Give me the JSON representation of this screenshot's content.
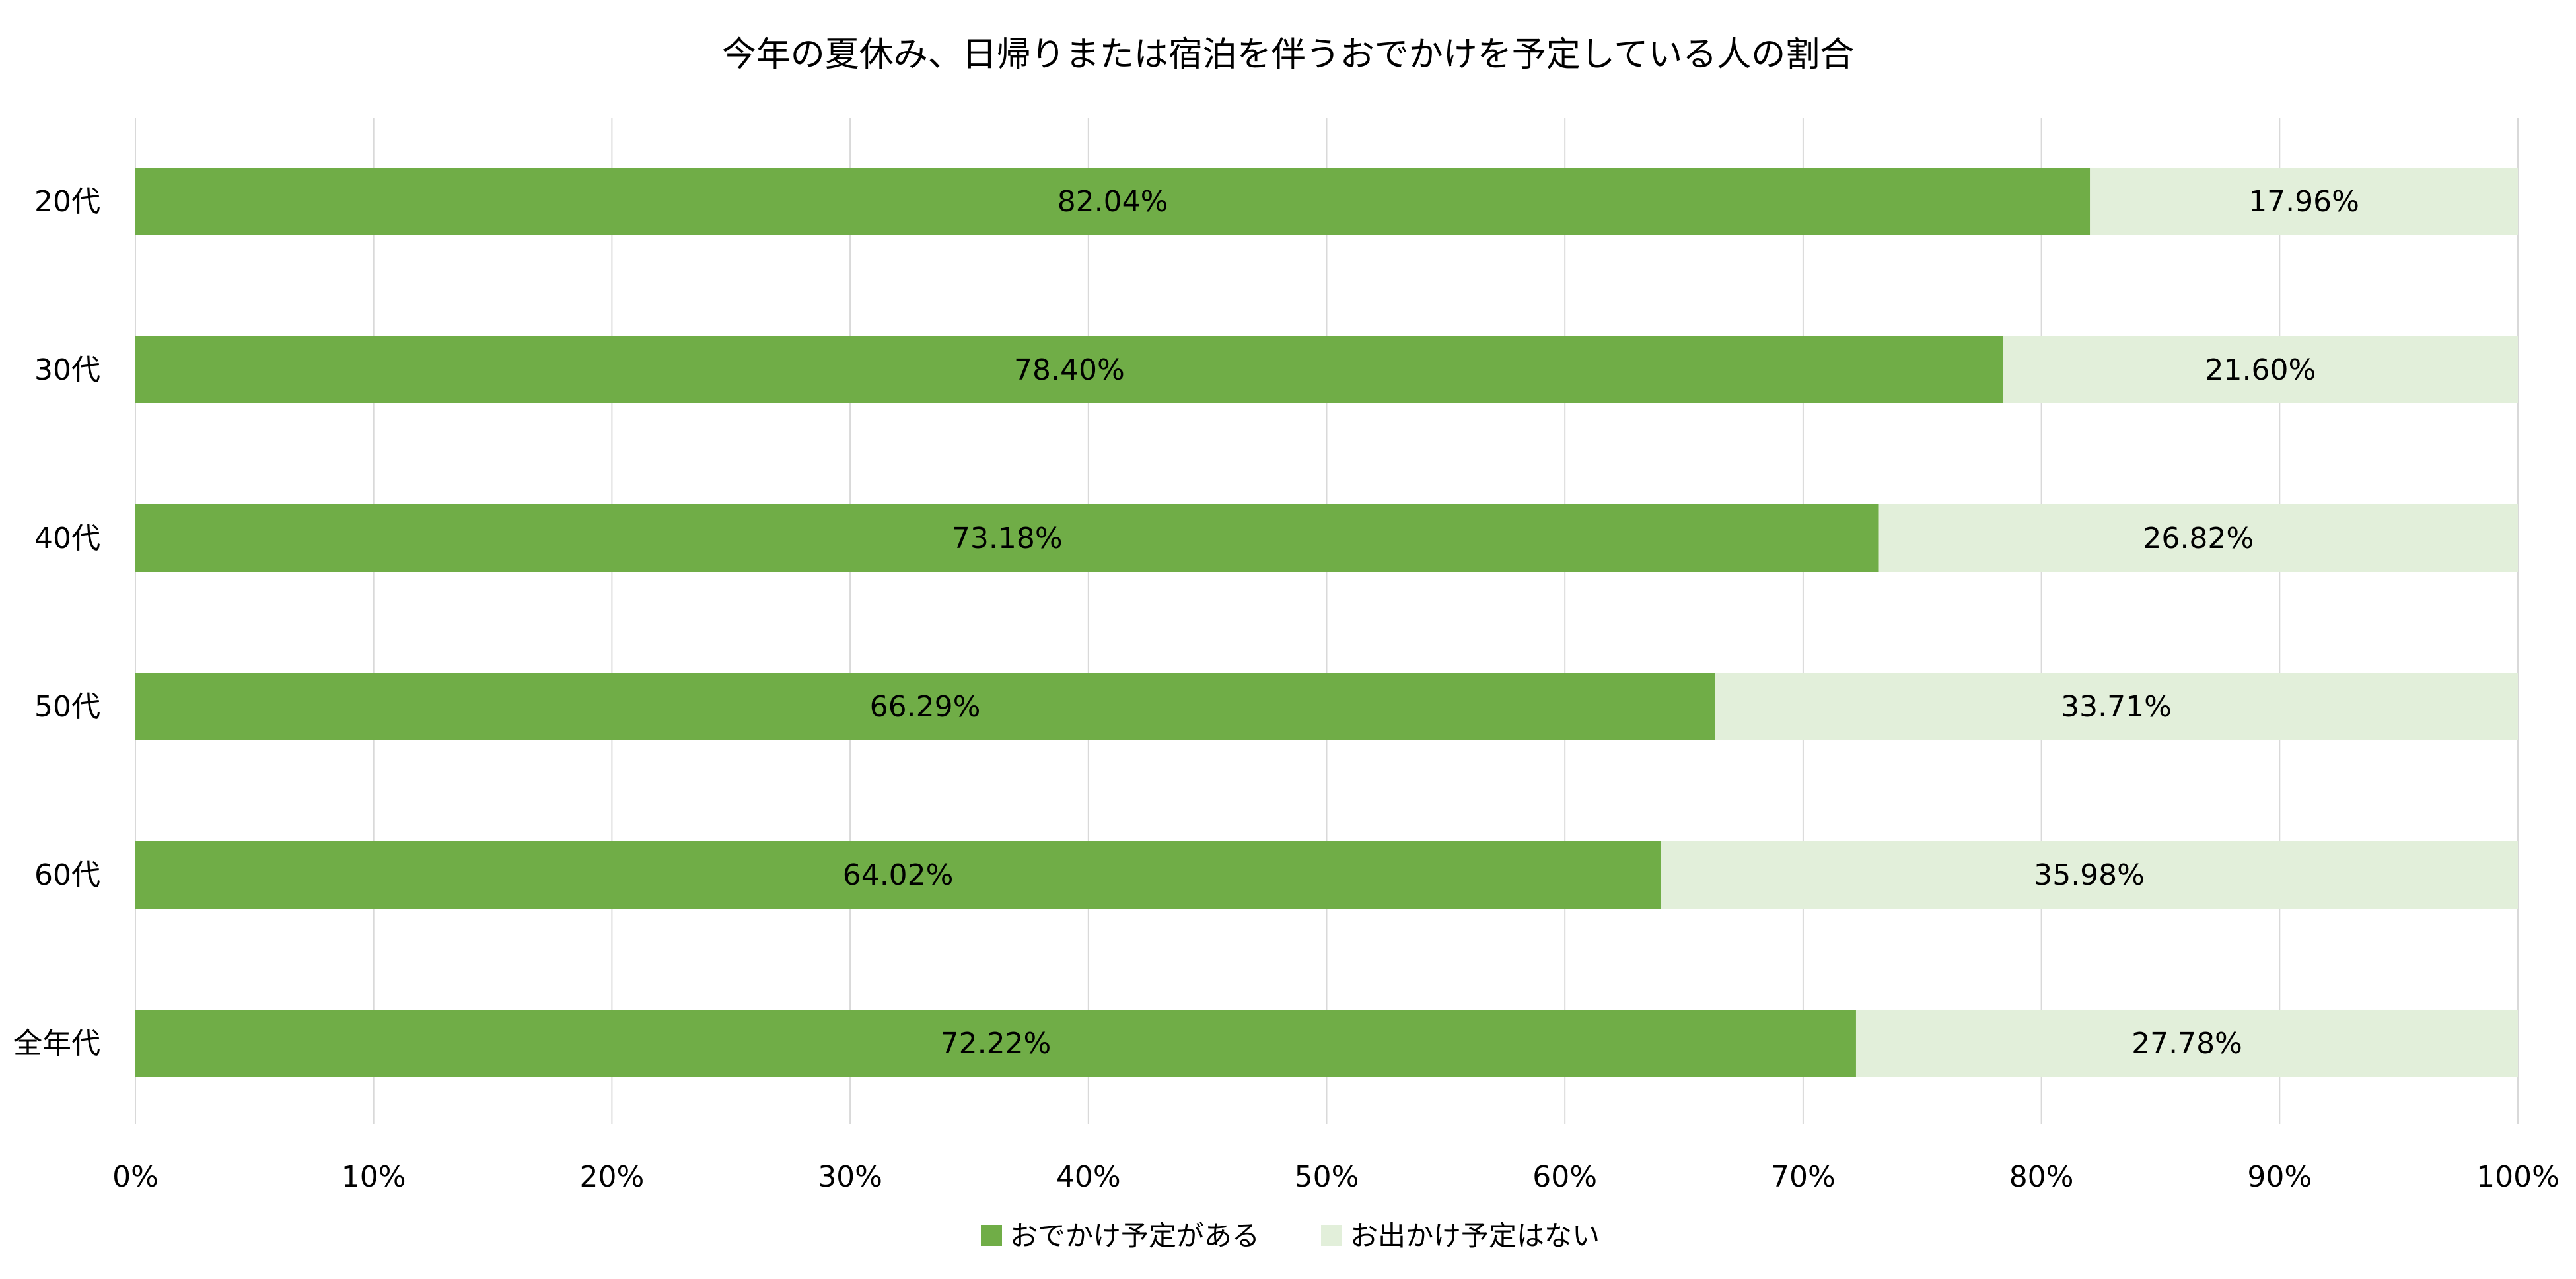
{
  "chart_data": {
    "type": "bar",
    "orientation": "horizontal",
    "stacked": "percent",
    "title": "今年の夏休み、日帰りまたは宿泊を伴うおでかけを予定している人の割合",
    "xlabel": "",
    "ylabel": "",
    "categories": [
      "20代",
      "30代",
      "40代",
      "50代",
      "60代",
      "全年代"
    ],
    "series": [
      {
        "name": "おでかけ予定がある",
        "color": "#70ad47",
        "values": [
          82.04,
          78.4,
          73.18,
          66.29,
          64.02,
          72.22
        ],
        "labels": [
          "82.04%",
          "78.40%",
          "73.18%",
          "66.29%",
          "64.02%",
          "72.22%"
        ]
      },
      {
        "name": "お出かけ予定はない",
        "color": "#e2efda",
        "values": [
          17.96,
          21.6,
          26.82,
          33.71,
          35.98,
          27.78
        ],
        "labels": [
          "17.96%",
          "21.60%",
          "26.82%",
          "33.71%",
          "35.98%",
          "27.78%"
        ]
      }
    ],
    "xlim": [
      0,
      100
    ],
    "x_ticks": [
      "0%",
      "10%",
      "20%",
      "30%",
      "40%",
      "50%",
      "60%",
      "70%",
      "80%",
      "90%",
      "100%"
    ],
    "grid": true,
    "legend_position": "bottom"
  }
}
